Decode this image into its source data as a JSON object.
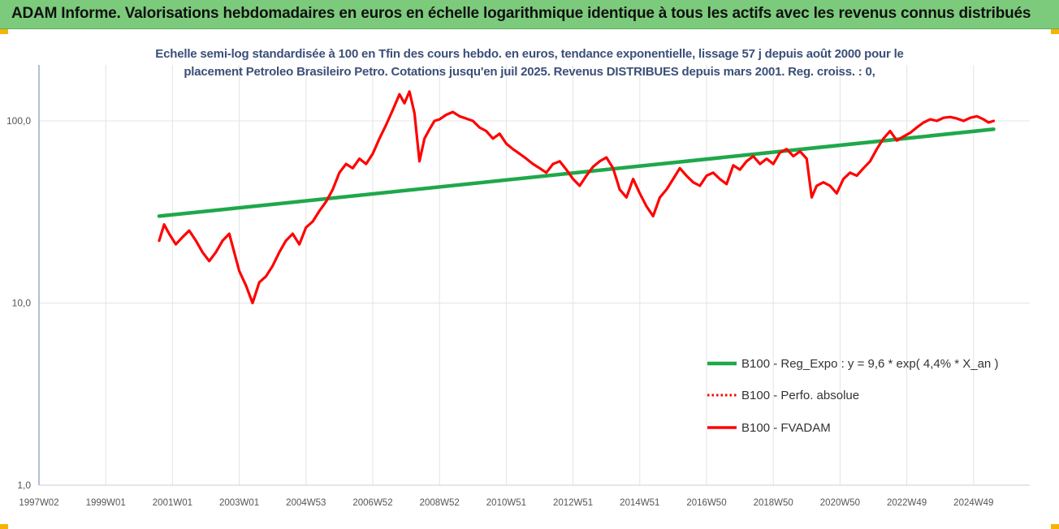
{
  "header": {
    "title": "ADAM Informe. Valorisations hebdomadaires en euros en échelle logarithmique identique à tous les actifs avec les revenus connus distribués"
  },
  "colors": {
    "banner": "#7ccb7c",
    "trend": "#1fa84a",
    "series": "#ff0000",
    "grid": "#e3e3e3",
    "subtitle": "#3b4f78"
  },
  "chart_data": {
    "type": "line",
    "title": "",
    "subtitle_line1": "Echelle semi-log standardisée à 100 en Tfin des cours hebdo. en euros, tendance exponentielle, lissage 57 j depuis août 2000 pour le",
    "subtitle_line2": "placement Petroleo Brasileiro Petro. Cotations jusqu'en juil 2025. Revenus DISTRIBUES depuis mars 2001. Reg. croiss. : 0,",
    "y_scale": "log",
    "ylim": [
      1,
      200
    ],
    "y_ticks": [
      "1,0",
      "10,0",
      "100,0"
    ],
    "y_tick_values": [
      1,
      10,
      100
    ],
    "x_range": [
      1997.0,
      2025.6
    ],
    "x_ticks": [
      "1997W02",
      "1999W01",
      "2001W01",
      "2003W01",
      "2004W53",
      "2006W52",
      "2008W52",
      "2010W51",
      "2012W51",
      "2014W51",
      "2016W50",
      "2018W50",
      "2020W50",
      "2022W49",
      "2024W49"
    ],
    "x_tick_values": [
      1997.0,
      1999.0,
      2001.0,
      2003.0,
      2005.0,
      2007.0,
      2009.0,
      2011.0,
      2013.0,
      2015.0,
      2017.0,
      2019.0,
      2021.0,
      2023.0,
      2025.0
    ],
    "grid": true,
    "legend_position": "bottom-right",
    "series": [
      {
        "name": "B100 - Reg_Expo : y = 9,6 * exp( 4,4% *  X_an )",
        "style": "solid",
        "color": "#1fa84a",
        "x": [
          2000.6,
          2025.6
        ],
        "y": [
          30,
          90
        ]
      },
      {
        "name": "B100 - Perfo. absolue",
        "style": "dotted",
        "color": "#ff0000",
        "x": [],
        "y": []
      },
      {
        "name": "B100 - FVADAM",
        "style": "solid",
        "color": "#ff0000",
        "x": [
          2000.6,
          2000.75,
          2000.9,
          2001.1,
          2001.3,
          2001.5,
          2001.7,
          2001.9,
          2002.1,
          2002.3,
          2002.5,
          2002.7,
          2002.85,
          2003.0,
          2003.2,
          2003.4,
          2003.6,
          2003.8,
          2004.0,
          2004.2,
          2004.4,
          2004.6,
          2004.8,
          2005.0,
          2005.2,
          2005.4,
          2005.6,
          2005.8,
          2006.0,
          2006.2,
          2006.4,
          2006.6,
          2006.8,
          2007.0,
          2007.2,
          2007.4,
          2007.6,
          2007.8,
          2007.95,
          2008.1,
          2008.25,
          2008.4,
          2008.55,
          2008.7,
          2008.85,
          2009.0,
          2009.2,
          2009.4,
          2009.6,
          2009.8,
          2010.0,
          2010.2,
          2010.4,
          2010.6,
          2010.8,
          2011.0,
          2011.2,
          2011.4,
          2011.6,
          2011.8,
          2012.0,
          2012.2,
          2012.4,
          2012.6,
          2012.8,
          2013.0,
          2013.2,
          2013.4,
          2013.6,
          2013.8,
          2014.0,
          2014.2,
          2014.4,
          2014.6,
          2014.8,
          2015.0,
          2015.2,
          2015.4,
          2015.6,
          2015.8,
          2016.0,
          2016.2,
          2016.4,
          2016.6,
          2016.8,
          2017.0,
          2017.2,
          2017.4,
          2017.6,
          2017.8,
          2018.0,
          2018.2,
          2018.4,
          2018.6,
          2018.8,
          2019.0,
          2019.2,
          2019.4,
          2019.6,
          2019.8,
          2020.0,
          2020.15,
          2020.3,
          2020.5,
          2020.7,
          2020.9,
          2021.1,
          2021.3,
          2021.5,
          2021.7,
          2021.9,
          2022.1,
          2022.3,
          2022.5,
          2022.7,
          2022.9,
          2023.1,
          2023.3,
          2023.5,
          2023.7,
          2023.9,
          2024.1,
          2024.3,
          2024.5,
          2024.7,
          2024.9,
          2025.1,
          2025.3,
          2025.45,
          2025.6
        ],
        "y": [
          22,
          27,
          24,
          21,
          23,
          25,
          22,
          19,
          17,
          19,
          22,
          24,
          19,
          15,
          12.5,
          10,
          13,
          14,
          16,
          19,
          22,
          24,
          21,
          26,
          28,
          32,
          36,
          42,
          52,
          58,
          55,
          62,
          58,
          66,
          80,
          95,
          115,
          140,
          125,
          145,
          110,
          60,
          80,
          90,
          100,
          102,
          108,
          112,
          106,
          103,
          100,
          92,
          88,
          80,
          85,
          75,
          70,
          66,
          62,
          58,
          55,
          52,
          58,
          60,
          54,
          48,
          44,
          50,
          56,
          60,
          63,
          55,
          42,
          38,
          48,
          40,
          34,
          30,
          38,
          42,
          48,
          55,
          50,
          46,
          44,
          50,
          52,
          48,
          45,
          57,
          54,
          60,
          64,
          58,
          62,
          58,
          67,
          70,
          64,
          68,
          62,
          38,
          44,
          46,
          44,
          40,
          48,
          52,
          50,
          55,
          60,
          70,
          80,
          88,
          78,
          82,
          86,
          92,
          98,
          102,
          100,
          104,
          105,
          103,
          100,
          104,
          106,
          102,
          98,
          100
        ]
      }
    ]
  }
}
